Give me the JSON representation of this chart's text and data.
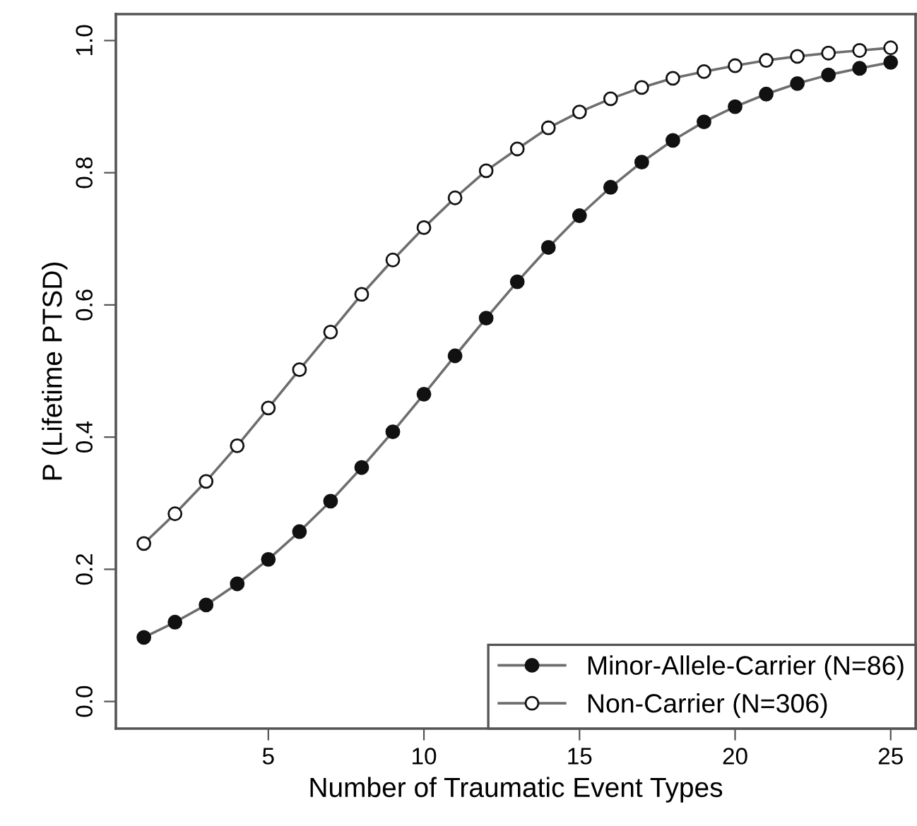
{
  "chart_data": {
    "type": "line",
    "xlabel": "Number of Traumatic Event Types",
    "ylabel": "P (Lifetime PTSD)",
    "x": [
      1,
      2,
      3,
      4,
      5,
      6,
      7,
      8,
      9,
      10,
      11,
      12,
      13,
      14,
      15,
      16,
      17,
      18,
      19,
      20,
      21,
      22,
      23,
      24,
      25
    ],
    "series": [
      {
        "name": "Minor-Allele-Carrier (N=86)",
        "color": "#111111",
        "values": [
          0.097,
          0.12,
          0.146,
          0.178,
          0.215,
          0.257,
          0.303,
          0.354,
          0.408,
          0.465,
          0.523,
          0.58,
          0.635,
          0.687,
          0.735,
          0.778,
          0.816,
          0.849,
          0.877,
          0.9,
          0.919,
          0.935,
          0.948,
          0.958,
          0.967
        ]
      },
      {
        "name": "Non-Carrier (N=306)",
        "color": "#ffffff",
        "values": [
          0.239,
          0.284,
          0.333,
          0.387,
          0.444,
          0.502,
          0.559,
          0.616,
          0.668,
          0.717,
          0.762,
          0.803,
          0.836,
          0.868,
          0.892,
          0.912,
          0.929,
          0.943,
          0.953,
          0.962,
          0.97,
          0.976,
          0.981,
          0.985,
          0.989
        ]
      }
    ],
    "xlim": [
      0.1,
      25.8
    ],
    "ylim": [
      -0.041,
      1.04
    ],
    "xticks": [
      5,
      10,
      15,
      20,
      25
    ],
    "yticks": [
      {
        "value": 0,
        "label": "0.0"
      },
      0.2,
      0.4,
      0.6,
      0.8,
      {
        "value": 1,
        "label": "1.0"
      }
    ],
    "marker": "circle",
    "line_style": "solid",
    "grid": false,
    "legend": "bottom right"
  }
}
